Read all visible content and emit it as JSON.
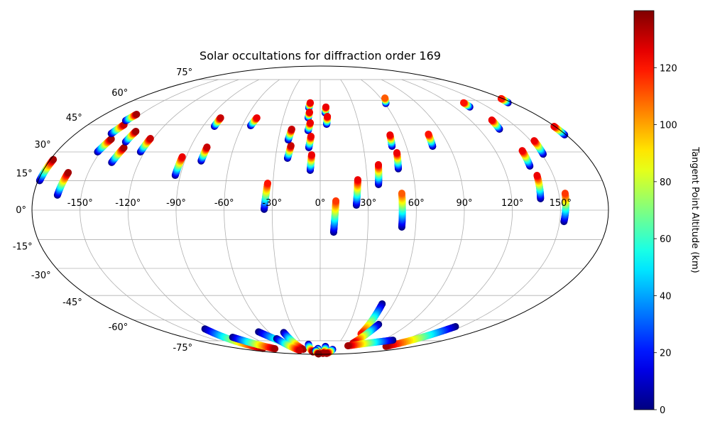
{
  "chart_data": {
    "type": "scatter",
    "projection": "mollweide",
    "title": "Solar occultations for diffraction order 169",
    "colorbar": {
      "label": "Tangent Point Altitude (km)",
      "colormap": "jet",
      "range": [
        0,
        140
      ],
      "ticks": [
        0,
        20,
        40,
        60,
        80,
        100,
        120
      ],
      "tick_labels": [
        "0",
        "20",
        "40",
        "60",
        "80",
        "100",
        "120"
      ]
    },
    "lat_ticks": [
      75,
      60,
      45,
      30,
      15,
      0,
      -15,
      -30,
      -45,
      -60,
      -75
    ],
    "lat_labels": [
      "75°",
      "60°",
      "45°",
      "30°",
      "15°",
      "0°",
      "-15°",
      "-30°",
      "-45°",
      "-60°",
      "-75°"
    ],
    "lon_ticks": [
      -150,
      -120,
      -90,
      -60,
      -30,
      0,
      30,
      60,
      90,
      120,
      150
    ],
    "lon_labels": [
      "-150°",
      "-120°",
      "-90°",
      "-60°",
      "-30°",
      "0°",
      "30°",
      "60°",
      "90°",
      "120°",
      "150°"
    ],
    "grid": true,
    "track_fields": [
      "lon_start",
      "lat_start",
      "lon_end",
      "lat_end",
      "alt_start_km",
      "alt_end_km"
    ],
    "tracks": [
      [
        -179,
        15,
        -178,
        26,
        0,
        135
      ],
      [
        -165,
        7.6,
        -163,
        19.2,
        0,
        135
      ],
      [
        -152,
        30,
        -150,
        37,
        0,
        135
      ],
      [
        -154,
        40,
        -152,
        45,
        0,
        130
      ],
      [
        -155,
        47.4,
        -153.5,
        51.2,
        0,
        135
      ],
      [
        -138,
        24.4,
        -136,
        32.3,
        0,
        135
      ],
      [
        -138,
        35.4,
        -137.5,
        41.3,
        0,
        135
      ],
      [
        -122.7,
        30,
        -122.2,
        37.3,
        0,
        130
      ],
      [
        -93.3,
        17.7,
        -92.7,
        27.4,
        0,
        125
      ],
      [
        -79.1,
        25.2,
        -78.6,
        32.6,
        0,
        130
      ],
      [
        -81.2,
        44.1,
        -81,
        49.1,
        0,
        130
      ],
      [
        -53.6,
        44.5,
        -51.5,
        49.1,
        0,
        125
      ],
      [
        -35,
        0.4,
        -33.4,
        13.7,
        0,
        120
      ],
      [
        -21.9,
        26.6,
        -20.4,
        33.4,
        0,
        130
      ],
      [
        -22.9,
        36.5,
        -21.5,
        42.5,
        0,
        130
      ],
      [
        -10.1,
        55.2,
        -9.3,
        58.4,
        0,
        125
      ],
      [
        -9.8,
        49.1,
        -9.1,
        52.5,
        0,
        125
      ],
      [
        -9.1,
        41.7,
        -7.8,
        46.2,
        0,
        125
      ],
      [
        -7.9,
        32.3,
        -6.7,
        38.5,
        0,
        125
      ],
      [
        -6.5,
        20.3,
        -5.8,
        28.5,
        0,
        125
      ],
      [
        4.2,
        52.1,
        5.1,
        55.7,
        0,
        125
      ],
      [
        5.0,
        45.3,
        5.9,
        49.9,
        0,
        125
      ],
      [
        8.5,
        -11.2,
        9.8,
        4.7,
        0,
        115
      ],
      [
        22.6,
        2.5,
        24.0,
        15.5,
        0,
        125
      ],
      [
        37.0,
        13.0,
        38.3,
        23.3,
        0,
        125
      ],
      [
        60.9,
        57.9,
        64.3,
        61.5,
        0,
        110
      ],
      [
        50.0,
        33.0,
        51.1,
        39.3,
        0,
        125
      ],
      [
        50.9,
        21.1,
        52.2,
        29.6,
        0,
        125
      ],
      [
        51.3,
        -8.6,
        51.3,
        8.6,
        0,
        110
      ],
      [
        78.3,
        33.0,
        79.5,
        39.7,
        0,
        120
      ],
      [
        133.8,
        55.7,
        134.3,
        58.4,
        0,
        120
      ],
      [
        135.3,
        42.5,
        137.3,
        47.8,
        0,
        125
      ],
      [
        176,
        58.4,
        178.4,
        61.1,
        0,
        120
      ],
      [
        137.5,
        22.5,
        138.5,
        30.7,
        0,
        125
      ],
      [
        151.1,
        28.8,
        152.5,
        36.1,
        0,
        125
      ],
      [
        138.0,
        5.8,
        139.5,
        17.7,
        0,
        125
      ],
      [
        179,
        39.3,
        179.4,
        44.1,
        0,
        125
      ],
      [
        152.7,
        -5.8,
        154.0,
        8.6,
        0,
        115
      ],
      [
        -127,
        -66,
        -127,
        -82,
        0,
        135
      ],
      [
        -116,
        -72.2,
        -103,
        -82.3,
        0,
        135
      ],
      [
        -71.8,
        -68.1,
        -47.7,
        -83,
        0,
        135
      ],
      [
        -43.1,
        -68.6,
        -40.9,
        -83,
        0,
        135
      ],
      [
        -60,
        -73.3,
        -55,
        -84,
        0,
        130
      ],
      [
        50.9,
        -49.9,
        49.6,
        -69.6,
        0,
        120
      ],
      [
        59.8,
        -62.9,
        53,
        -76.9,
        0,
        130
      ],
      [
        143.3,
        -64.4,
        126,
        -80,
        0,
        135
      ],
      [
        105,
        -74.5,
        51,
        -79.4,
        0,
        135
      ],
      [
        -20,
        -78,
        -25,
        -86,
        0,
        135
      ],
      [
        -5,
        -82,
        -8,
        -87,
        0,
        130
      ],
      [
        10,
        -80,
        15,
        -88,
        0,
        135
      ],
      [
        30,
        -83,
        35,
        -88,
        0,
        135
      ],
      [
        -12,
        -84,
        -14,
        -89,
        0,
        140
      ]
    ]
  }
}
